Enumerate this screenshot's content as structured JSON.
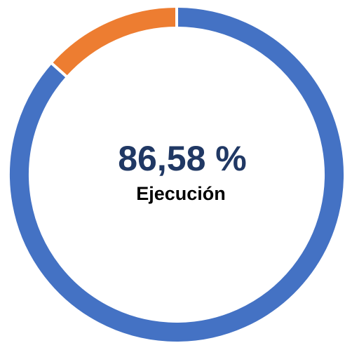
{
  "chart_data": {
    "type": "donut",
    "values": [
      86.58,
      13.42
    ],
    "value_labels": [
      "86,58 %",
      null
    ],
    "colors": [
      "#4472c4",
      "#ed7d31"
    ],
    "caption": "Ejecución"
  }
}
